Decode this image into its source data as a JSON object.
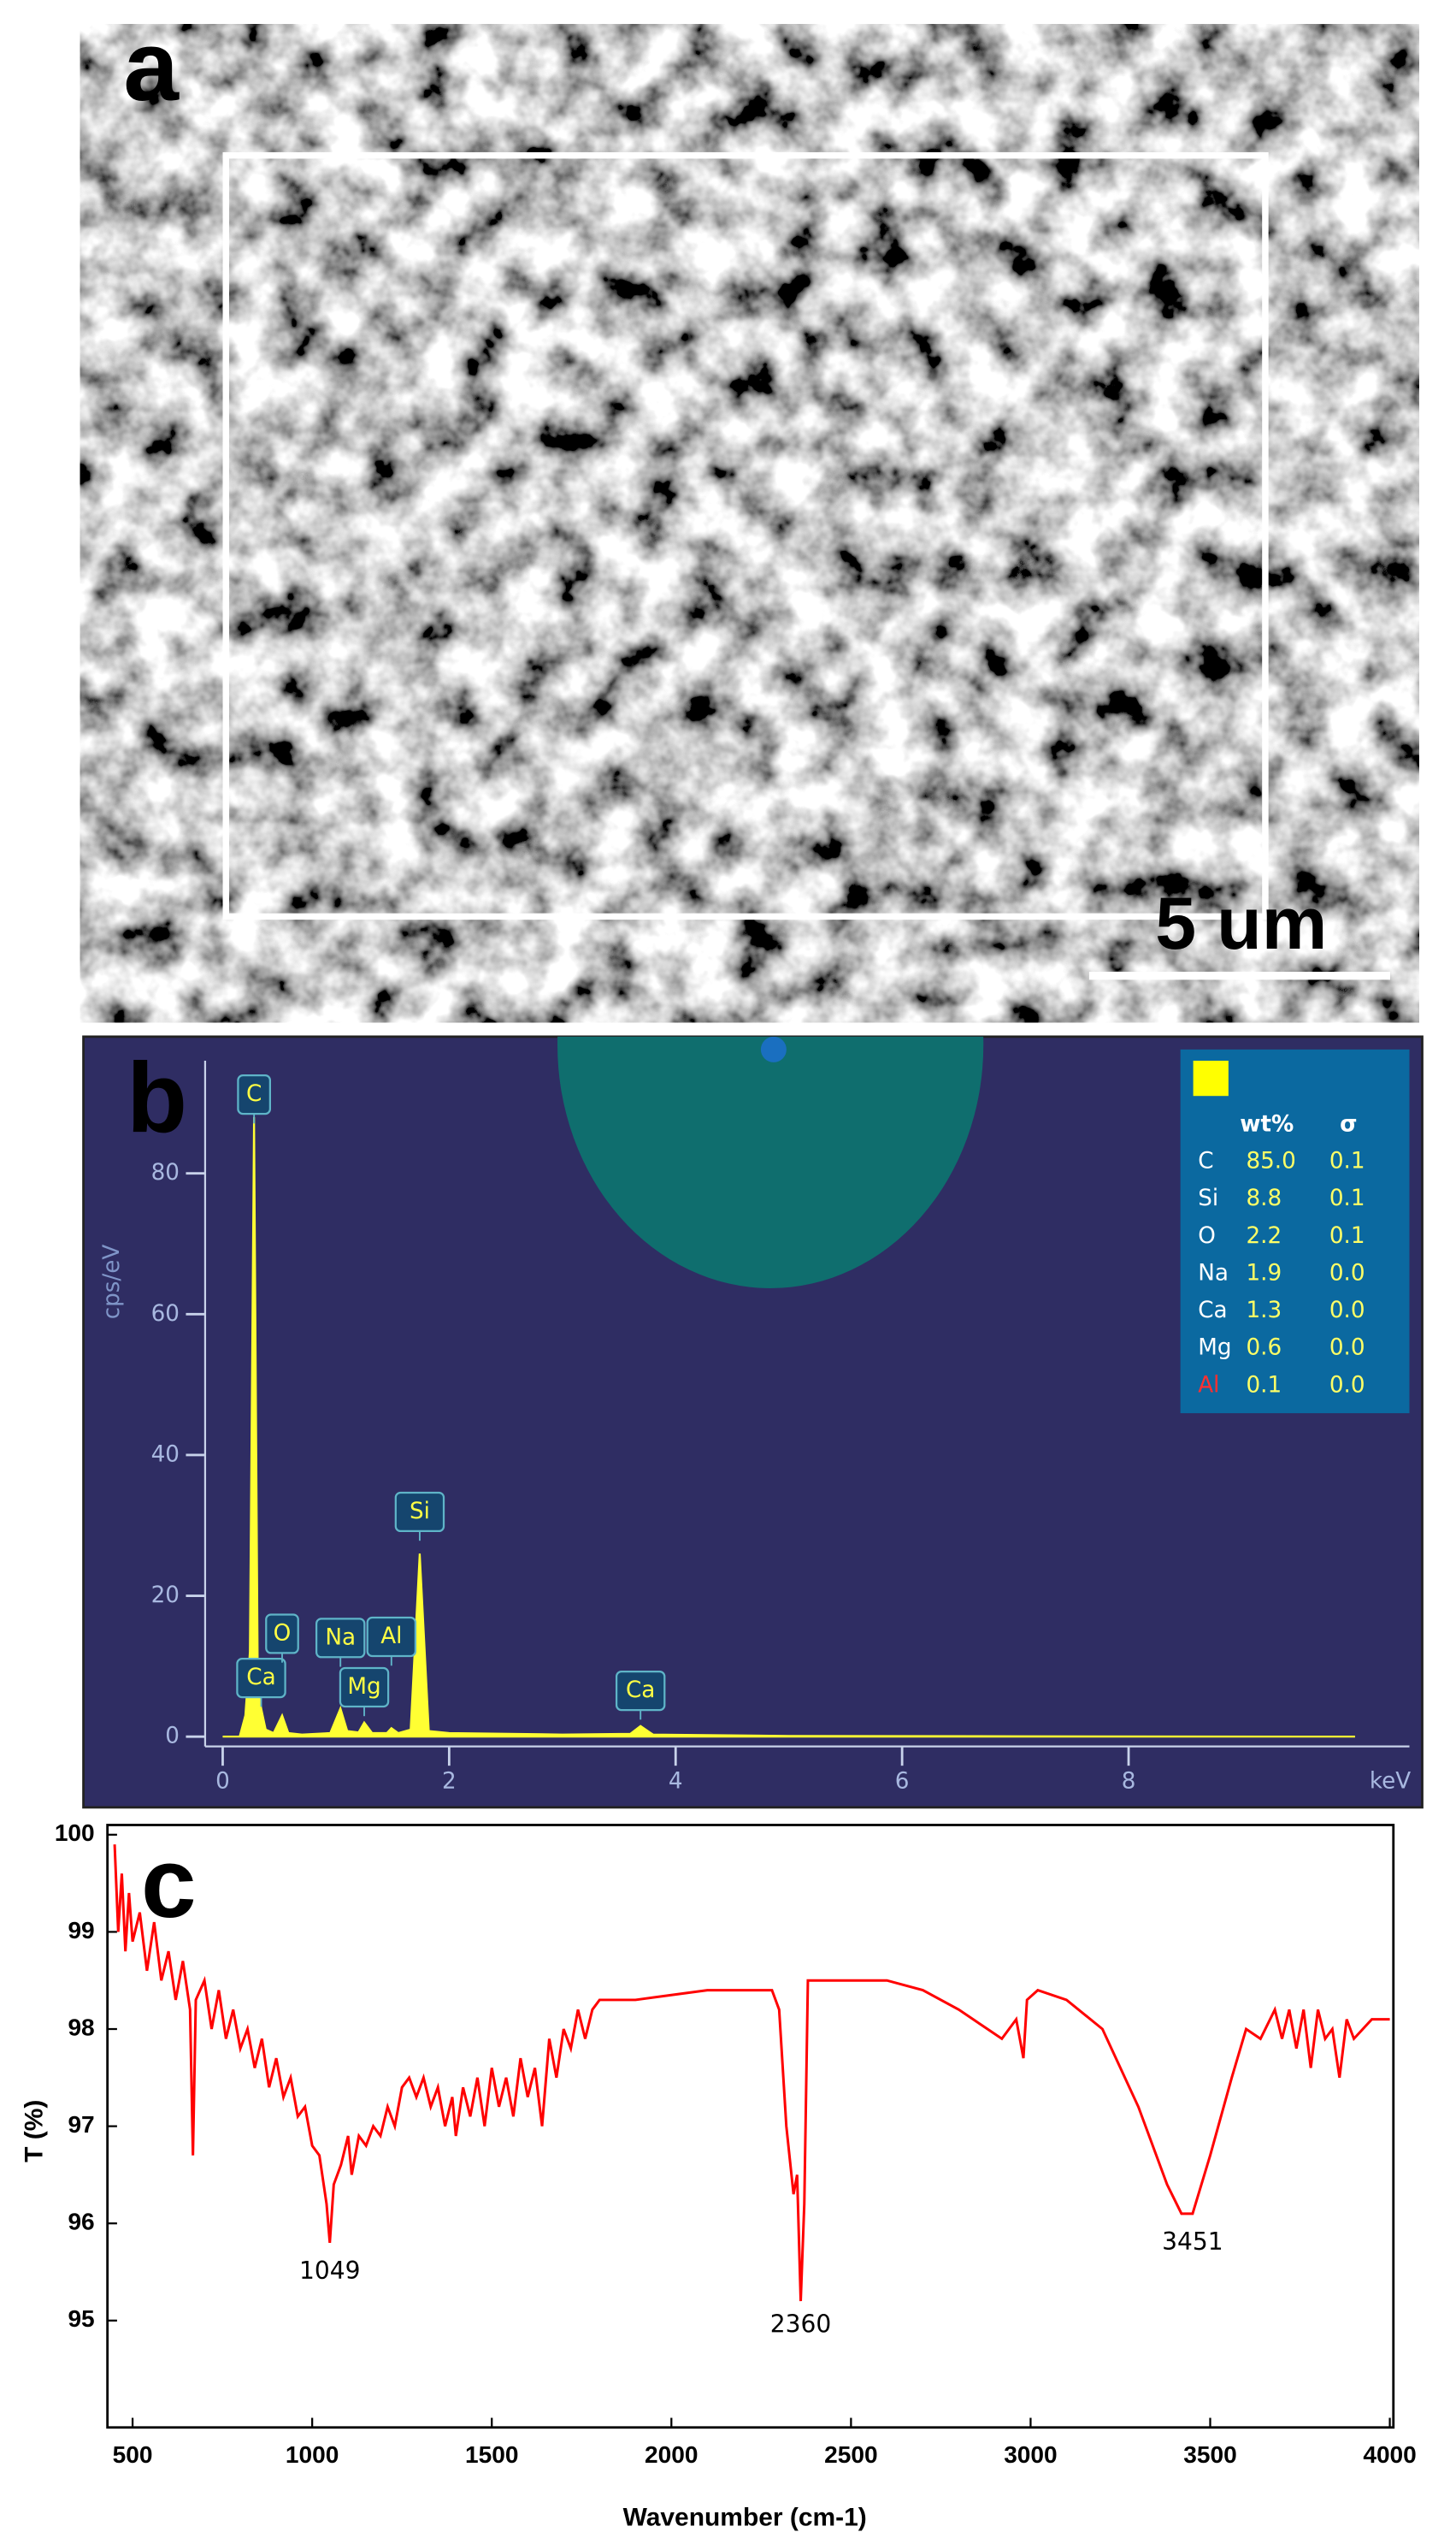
{
  "chart_data": [
    {
      "type": "image",
      "panel_label": "a",
      "scale_bar_label": "5 um"
    },
    {
      "type": "area",
      "panel_label": "b",
      "y_label": "cps/eV",
      "x_label": "keV",
      "color": "#ffff33",
      "x": [
        0,
        0.15,
        0.2,
        0.24,
        0.277,
        0.31,
        0.34,
        0.38,
        0.45,
        0.525,
        0.58,
        0.7,
        0.95,
        1.04,
        1.1,
        1.2,
        1.25,
        1.32,
        1.45,
        1.49,
        1.55,
        1.66,
        1.74,
        1.82,
        2.0,
        3.0,
        3.6,
        3.69,
        3.8,
        5,
        7,
        10
      ],
      "values": [
        0,
        0,
        3,
        12,
        88,
        8,
        4,
        1,
        0.5,
        3,
        0.5,
        0.3,
        0.5,
        4,
        0.8,
        0.6,
        2,
        0.5,
        0.5,
        1.2,
        0.5,
        1,
        26,
        0.8,
        0.5,
        0.3,
        0.4,
        1.5,
        0.3,
        0.1,
        0.05,
        0
      ],
      "xlim": [
        -0.155,
        10.48
      ],
      "ylim": [
        -1.4,
        96
      ],
      "xticks": [
        0,
        2,
        4,
        6,
        8
      ],
      "yticks": [
        0,
        20,
        40,
        60,
        80
      ],
      "peak_labels": [
        {
          "text": "C",
          "energy": 0.277
        },
        {
          "text": "Ca",
          "energy": 0.34
        },
        {
          "text": "O",
          "energy": 0.525
        },
        {
          "text": "Na",
          "energy": 1.04
        },
        {
          "text": "Mg",
          "energy": 1.25
        },
        {
          "text": "Al",
          "energy": 1.49
        },
        {
          "text": "Si",
          "energy": 1.74
        },
        {
          "text": "Ca",
          "energy": 3.69
        }
      ],
      "inset_table": {
        "columns": [
          "wt%",
          "σ"
        ],
        "rows": [
          {
            "element": "C",
            "wt": "85.0",
            "sigma": "0.1",
            "color": "#ffffff"
          },
          {
            "element": "Si",
            "wt": "8.8",
            "sigma": "0.1",
            "color": "#ffffff"
          },
          {
            "element": "O",
            "wt": "2.2",
            "sigma": "0.1",
            "color": "#ffffff"
          },
          {
            "element": "Na",
            "wt": "1.9",
            "sigma": "0.0",
            "color": "#ffffff"
          },
          {
            "element": "Ca",
            "wt": "1.3",
            "sigma": "0.0",
            "color": "#ffffff"
          },
          {
            "element": "Mg",
            "wt": "0.6",
            "sigma": "0.0",
            "color": "#ffffff"
          },
          {
            "element": "Al",
            "wt": "0.1",
            "sigma": "0.0",
            "color": "#ff3030"
          }
        ]
      }
    },
    {
      "type": "line",
      "panel_label": "c",
      "x_label": "Wavenumber (cm-1)",
      "y_label": "T (%)",
      "color": "#ff0000",
      "x": [
        450,
        460,
        470,
        480,
        490,
        500,
        520,
        540,
        560,
        580,
        600,
        620,
        640,
        660,
        668,
        676,
        700,
        720,
        740,
        760,
        780,
        800,
        820,
        840,
        860,
        880,
        900,
        920,
        940,
        960,
        980,
        1000,
        1020,
        1040,
        1049,
        1060,
        1080,
        1100,
        1110,
        1130,
        1150,
        1170,
        1190,
        1210,
        1230,
        1250,
        1270,
        1290,
        1310,
        1330,
        1350,
        1370,
        1390,
        1400,
        1420,
        1440,
        1460,
        1480,
        1500,
        1520,
        1540,
        1560,
        1580,
        1600,
        1620,
        1640,
        1660,
        1680,
        1700,
        1720,
        1740,
        1760,
        1780,
        1800,
        1900,
        2000,
        2100,
        2200,
        2280,
        2300,
        2320,
        2340,
        2350,
        2360,
        2370,
        2380,
        2400,
        2500,
        2600,
        2700,
        2800,
        2880,
        2920,
        2960,
        2980,
        2990,
        3020,
        3100,
        3200,
        3300,
        3380,
        3420,
        3451,
        3500,
        3560,
        3600,
        3640,
        3680,
        3700,
        3720,
        3740,
        3760,
        3780,
        3800,
        3820,
        3840,
        3860,
        3880,
        3900,
        3950,
        4000
      ],
      "values": [
        99.9,
        99.0,
        99.6,
        98.8,
        99.4,
        98.9,
        99.2,
        98.6,
        99.1,
        98.5,
        98.8,
        98.3,
        98.7,
        98.2,
        96.7,
        98.3,
        98.5,
        98.0,
        98.4,
        97.9,
        98.2,
        97.8,
        98.0,
        97.6,
        97.9,
        97.4,
        97.7,
        97.3,
        97.5,
        97.1,
        97.2,
        96.8,
        96.7,
        96.2,
        95.8,
        96.4,
        96.6,
        96.9,
        96.5,
        96.9,
        96.8,
        97.0,
        96.9,
        97.2,
        97.0,
        97.4,
        97.5,
        97.3,
        97.5,
        97.2,
        97.4,
        97.0,
        97.3,
        96.9,
        97.4,
        97.1,
        97.5,
        97.0,
        97.6,
        97.2,
        97.5,
        97.1,
        97.7,
        97.3,
        97.6,
        97.0,
        97.9,
        97.5,
        98.0,
        97.8,
        98.2,
        97.9,
        98.2,
        98.3,
        98.3,
        98.35,
        98.4,
        98.4,
        98.4,
        98.2,
        97.0,
        96.3,
        96.5,
        95.2,
        96.2,
        98.5,
        98.5,
        98.5,
        98.5,
        98.4,
        98.2,
        98.0,
        97.9,
        98.1,
        97.7,
        98.3,
        98.4,
        98.3,
        98.0,
        97.2,
        96.4,
        96.1,
        96.1,
        96.7,
        97.5,
        98.0,
        97.9,
        98.2,
        97.9,
        98.2,
        97.8,
        98.2,
        97.6,
        98.2,
        97.9,
        98.0,
        97.5,
        98.1,
        97.9,
        98.1,
        98.1
      ],
      "xlim": [
        430,
        4010
      ],
      "ylim": [
        93.9,
        100.1
      ],
      "xticks": [
        500,
        1000,
        1500,
        2000,
        2500,
        3000,
        3500,
        4000
      ],
      "yticks": [
        95,
        96,
        97,
        98,
        99,
        100
      ],
      "annotations": [
        {
          "text": "1049",
          "x": 1049,
          "y": 95.5
        },
        {
          "text": "2360",
          "x": 2360,
          "y": 94.95
        },
        {
          "text": "3451",
          "x": 3451,
          "y": 95.8
        }
      ]
    }
  ]
}
